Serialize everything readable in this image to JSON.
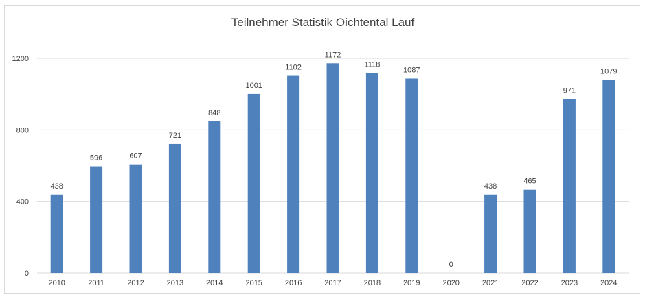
{
  "chart_data": {
    "type": "bar",
    "title": "Teilnehmer Statistik Oichtental Lauf",
    "categories": [
      "2010",
      "2011",
      "2012",
      "2013",
      "2014",
      "2015",
      "2016",
      "2017",
      "2018",
      "2019",
      "2020",
      "2021",
      "2022",
      "2023",
      "2024"
    ],
    "values": [
      438,
      596,
      607,
      721,
      848,
      1001,
      1102,
      1172,
      1118,
      1087,
      0,
      438,
      465,
      971,
      1079
    ],
    "ylim": [
      0,
      1200
    ],
    "yticks": [
      0,
      400,
      800,
      1200
    ],
    "grid": true,
    "legend": "none",
    "bar_color": "#4f81bd"
  }
}
